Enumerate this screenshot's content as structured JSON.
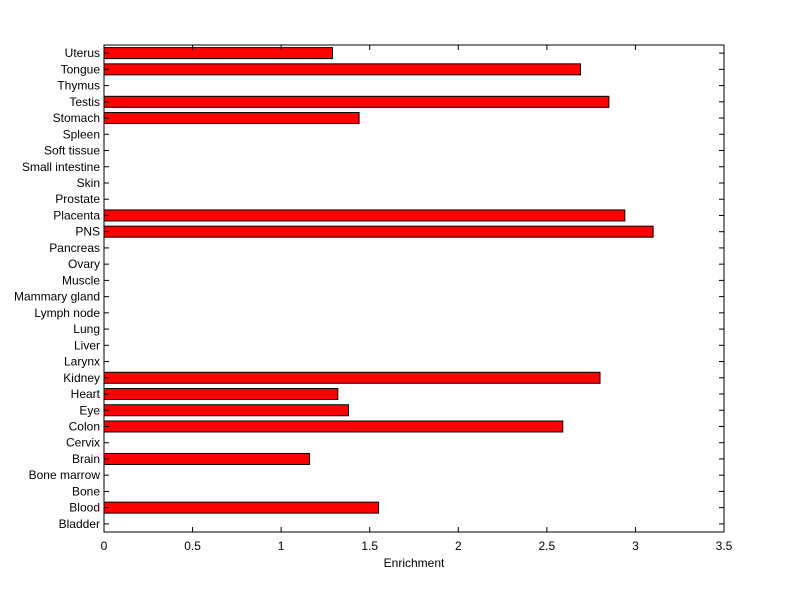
{
  "chart_data": {
    "type": "bar",
    "orientation": "horizontal",
    "categories": [
      "Bladder",
      "Blood",
      "Bone",
      "Bone marrow",
      "Brain",
      "Cervix",
      "Colon",
      "Eye",
      "Heart",
      "Kidney",
      "Larynx",
      "Liver",
      "Lung",
      "Lymph node",
      "Mammary gland",
      "Muscle",
      "Ovary",
      "Pancreas",
      "PNS",
      "Placenta",
      "Prostate",
      "Skin",
      "Small intestine",
      "Soft tissue",
      "Spleen",
      "Stomach",
      "Testis",
      "Thymus",
      "Tongue",
      "Uterus"
    ],
    "values": [
      0,
      1.55,
      0,
      0,
      1.16,
      0,
      2.59,
      1.38,
      1.32,
      2.8,
      0,
      0,
      0,
      0,
      0,
      0,
      0,
      0,
      3.1,
      2.94,
      0,
      0,
      0,
      0,
      0,
      1.44,
      2.85,
      0,
      2.69,
      1.29
    ],
    "xlabel": "Enrichment",
    "ylabel": "",
    "xlim": [
      0,
      3.5
    ],
    "xticks": [
      "0",
      "0.5",
      "1",
      "1.5",
      "2",
      "2.5",
      "3",
      "3.5"
    ],
    "bar_color": "#ff0000",
    "grid": false
  }
}
